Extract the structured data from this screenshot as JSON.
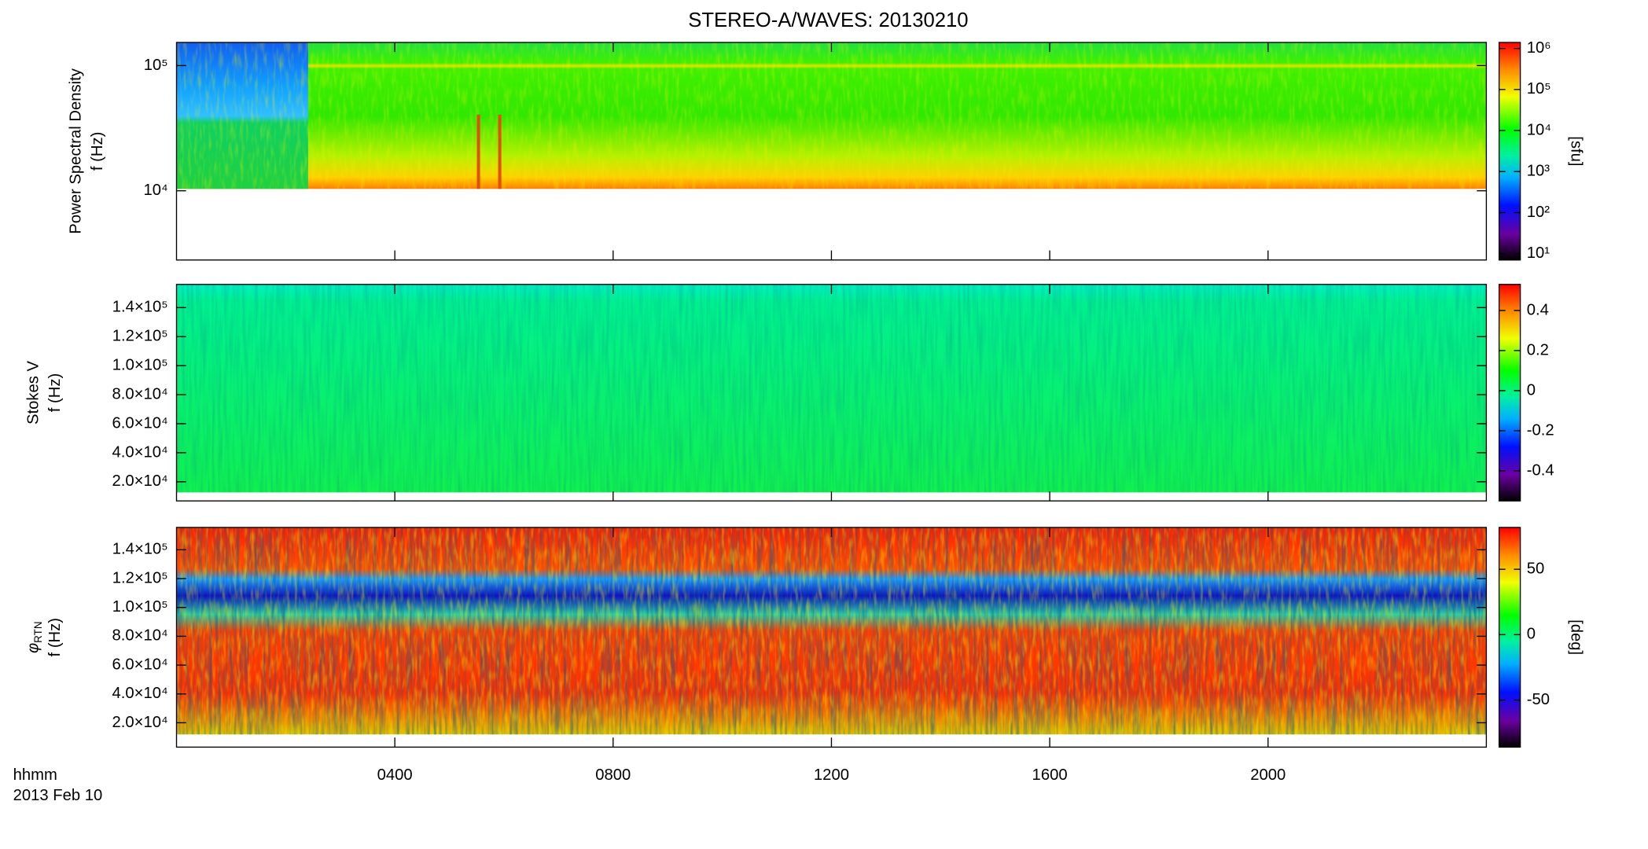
{
  "chart_data": [
    {
      "type": "spectrogram",
      "title": "STEREO-A/WAVES: 20130210",
      "ylabel": "Power Spectral Density",
      "ylabel_unit": "f (Hz)",
      "ylog": true,
      "ylim": [
        2800,
        153000
      ],
      "yticks": [
        {
          "value": 10000,
          "label": "10⁴"
        },
        {
          "value": 100000,
          "label": "10⁵"
        }
      ],
      "zlog": true,
      "zlim": [
        7,
        1400000
      ],
      "zticks": [
        {
          "value": 10,
          "label": "10¹"
        },
        {
          "value": 100,
          "label": "10²"
        },
        {
          "value": 1000,
          "label": "10³"
        },
        {
          "value": 10000,
          "label": "10⁴"
        },
        {
          "value": 100000,
          "label": "10⁵"
        },
        {
          "value": 1000000,
          "label": "10⁶"
        }
      ],
      "zlabel": "[sfu]"
    },
    {
      "type": "spectrogram",
      "ylabel": "Stokes V",
      "ylabel_unit": "f (Hz)",
      "ylog": false,
      "ylim": [
        6800,
        156000
      ],
      "yticks": [
        {
          "value": 20000,
          "label": "2.0×10⁴"
        },
        {
          "value": 40000,
          "label": "4.0×10⁴"
        },
        {
          "value": 60000,
          "label": "6.0×10⁴"
        },
        {
          "value": 80000,
          "label": "8.0×10⁴"
        },
        {
          "value": 100000,
          "label": "1.0×10⁵"
        },
        {
          "value": 120000,
          "label": "1.2×10⁵"
        },
        {
          "value": 140000,
          "label": "1.4×10⁵"
        }
      ],
      "zlog": false,
      "zlim": [
        -0.55,
        0.53
      ],
      "zticks": [
        -0.4,
        -0.2,
        0.0,
        0.2,
        0.4
      ]
    },
    {
      "type": "spectrogram",
      "ylabel": "φ",
      "ylabel_sub": "RTN",
      "ylabel_unit": "f (Hz)",
      "ylog": false,
      "ylim": [
        3100,
        155500
      ],
      "yticks": [
        {
          "value": 20000,
          "label": "2.0×10⁴"
        },
        {
          "value": 40000,
          "label": "4.0×10⁴"
        },
        {
          "value": 60000,
          "label": "6.0×10⁴"
        },
        {
          "value": 80000,
          "label": "8.0×10⁴"
        },
        {
          "value": 100000,
          "label": "1.0×10⁵"
        },
        {
          "value": 120000,
          "label": "1.2×10⁵"
        },
        {
          "value": 140000,
          "label": "1.4×10⁵"
        }
      ],
      "zlog": false,
      "zlim": [
        -86,
        82
      ],
      "zticks": [
        -50,
        0,
        50
      ],
      "zlabel": "[deg]",
      "xlim": [
        0,
        1440
      ],
      "xticks": [
        {
          "value": 240,
          "label": "0400"
        },
        {
          "value": 480,
          "label": "0800"
        },
        {
          "value": 720,
          "label": "1200"
        },
        {
          "value": 960,
          "label": "1600"
        },
        {
          "value": 1200,
          "label": "2000"
        }
      ],
      "xlabel": "hhmm",
      "date": "2013 Feb 10"
    }
  ]
}
